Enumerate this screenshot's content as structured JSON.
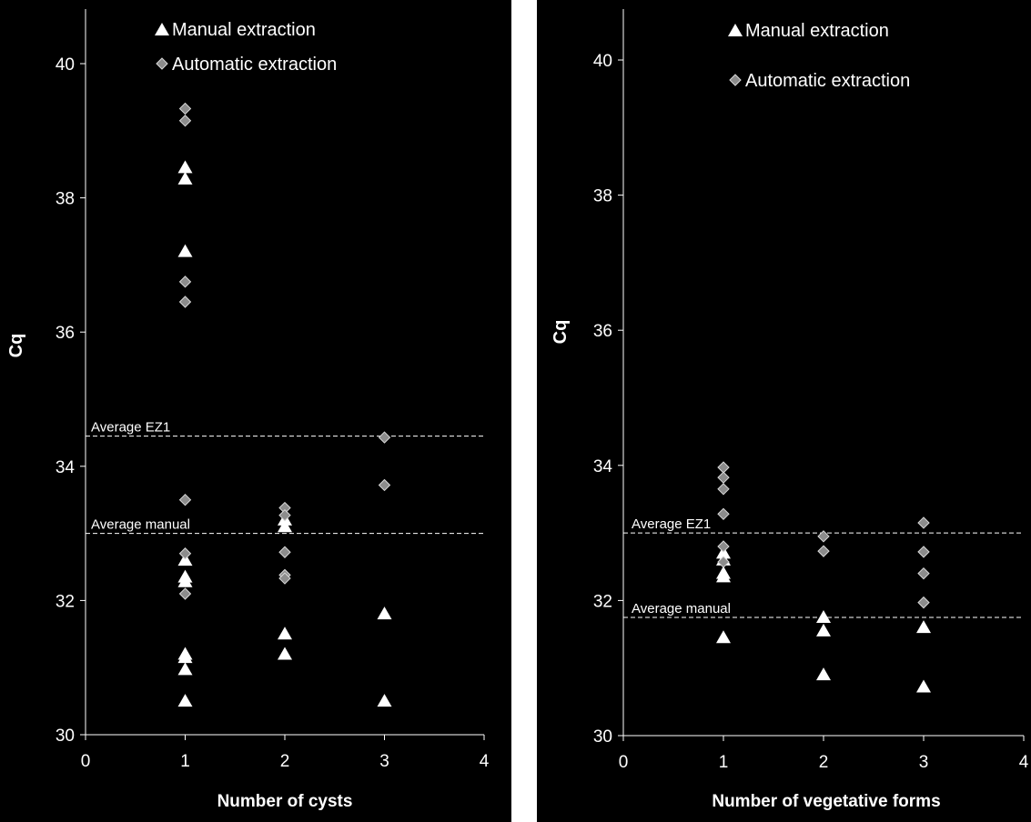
{
  "colors": {
    "background": "#000000",
    "axis": "#ffffff",
    "text": "#ffffff",
    "manual_marker": "#ffffff",
    "automatic_marker": "#8c8c8c",
    "automatic_marker_edge": "#d9d9d9",
    "reference_line": "#ffffff"
  },
  "chart_data": [
    {
      "type": "scatter",
      "xlabel": "Number of cysts",
      "ylabel": "Cq",
      "xlim": [
        0,
        4
      ],
      "ylim": [
        30,
        40
      ],
      "xticks": [
        "0",
        "1",
        "2",
        "3",
        "4"
      ],
      "yticks": [
        "30",
        "32",
        "34",
        "36",
        "38",
        "40"
      ],
      "grid": false,
      "legend_position": "top-center",
      "series": [
        {
          "name": "Manual extraction",
          "marker": "triangle",
          "x": [
            1,
            1,
            1,
            1,
            1,
            1,
            1,
            1,
            1,
            1,
            2,
            2,
            2,
            2,
            3,
            3
          ],
          "y": [
            38.45,
            38.28,
            37.2,
            32.6,
            32.35,
            32.28,
            31.2,
            31.15,
            30.97,
            30.5,
            33.2,
            33.1,
            31.5,
            31.2,
            31.8,
            30.5
          ]
        },
        {
          "name": "Automatic extraction",
          "marker": "diamond",
          "x": [
            1,
            1,
            1,
            1,
            1,
            1,
            1,
            2,
            2,
            2,
            2,
            2,
            3,
            3
          ],
          "y": [
            39.33,
            39.15,
            36.75,
            36.45,
            33.5,
            32.7,
            32.1,
            33.38,
            33.27,
            32.72,
            32.38,
            32.33,
            34.43,
            33.72
          ]
        }
      ],
      "reference_lines": [
        {
          "label": "Average EZ1",
          "y": 34.45
        },
        {
          "label": "Average manual",
          "y": 33.0
        }
      ]
    },
    {
      "type": "scatter",
      "xlabel": "Number of vegetative forms",
      "ylabel": "Cq",
      "xlim": [
        0,
        4
      ],
      "ylim": [
        30,
        40
      ],
      "xticks": [
        "0",
        "1",
        "2",
        "3",
        "4"
      ],
      "yticks": [
        "30",
        "32",
        "34",
        "36",
        "38",
        "40"
      ],
      "grid": false,
      "legend_position": "top-center",
      "series": [
        {
          "name": "Manual extraction",
          "marker": "triangle",
          "x": [
            1,
            1,
            1,
            1,
            1,
            2,
            2,
            2,
            3,
            3
          ],
          "y": [
            32.7,
            32.6,
            32.4,
            32.35,
            31.45,
            31.75,
            31.55,
            30.9,
            31.6,
            30.72
          ]
        },
        {
          "name": "Automatic extraction",
          "marker": "diamond",
          "x": [
            1,
            1,
            1,
            1,
            1,
            1,
            2,
            2,
            3,
            3,
            3,
            3
          ],
          "y": [
            33.97,
            33.82,
            33.65,
            33.28,
            32.8,
            32.57,
            32.95,
            32.73,
            33.15,
            32.72,
            32.4,
            31.97
          ]
        }
      ],
      "reference_lines": [
        {
          "label": "Average EZ1",
          "y": 33.0
        },
        {
          "label": "Average manual",
          "y": 31.75
        }
      ]
    }
  ]
}
